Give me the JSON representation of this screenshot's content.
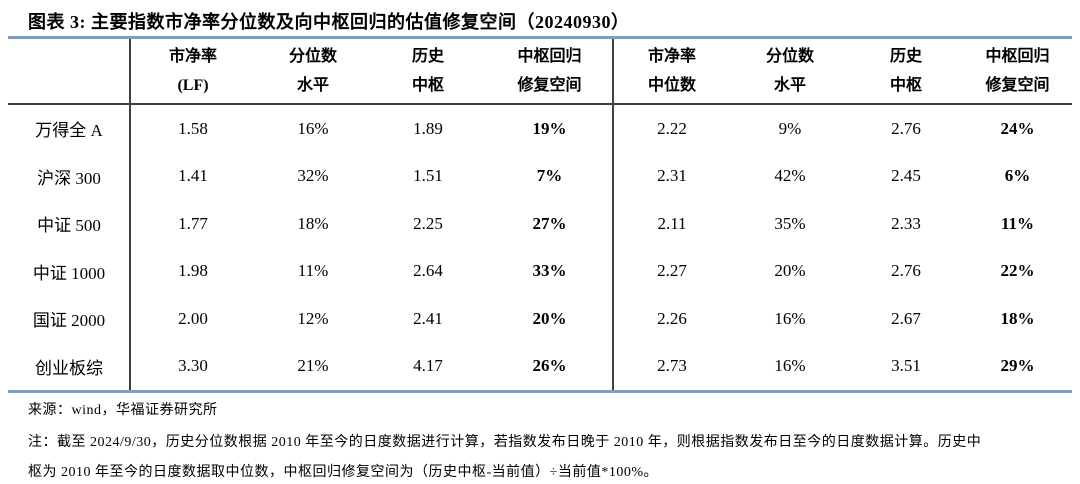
{
  "chart_data": {
    "type": "table",
    "title": "图表 3:  主要指数市净率分位数及向中枢回归的估值修复空间（20240930）",
    "columns": [
      "市净率(LF)",
      "分位数水平",
      "历史中枢",
      "中枢回归修复空间",
      "市净率中位数",
      "分位数水平",
      "历史中枢",
      "中枢回归修复空间"
    ],
    "rows": [
      {
        "index": "万得全 A",
        "values": [
          "1.58",
          "16%",
          "1.89",
          "19%",
          "2.22",
          "9%",
          "2.76",
          "24%"
        ]
      },
      {
        "index": "沪深 300",
        "values": [
          "1.41",
          "32%",
          "1.51",
          "7%",
          "2.31",
          "42%",
          "2.45",
          "6%"
        ]
      },
      {
        "index": "中证 500",
        "values": [
          "1.77",
          "18%",
          "2.25",
          "27%",
          "2.11",
          "35%",
          "2.33",
          "11%"
        ]
      },
      {
        "index": "中证 1000",
        "values": [
          "1.98",
          "11%",
          "2.64",
          "33%",
          "2.27",
          "20%",
          "2.76",
          "22%"
        ]
      },
      {
        "index": "国证 2000",
        "values": [
          "2.00",
          "12%",
          "2.41",
          "20%",
          "2.26",
          "16%",
          "2.67",
          "18%"
        ]
      },
      {
        "index": "创业板综",
        "values": [
          "3.30",
          "21%",
          "4.17",
          "26%",
          "2.73",
          "16%",
          "3.51",
          "29%"
        ]
      }
    ]
  },
  "headers": [
    {
      "line1": "市净率",
      "line2": "(LF)"
    },
    {
      "line1": "分位数",
      "line2": "水平"
    },
    {
      "line1": "历史",
      "line2": "中枢"
    },
    {
      "line1": "中枢回归",
      "line2": "修复空间"
    },
    {
      "line1": "市净率",
      "line2": "中位数"
    },
    {
      "line1": "分位数",
      "line2": "水平"
    },
    {
      "line1": "历史",
      "line2": "中枢"
    },
    {
      "line1": "中枢回归",
      "line2": "修复空间"
    }
  ],
  "footer": {
    "source": "来源：wind，华福证券研究所",
    "note_line1": "注：截至 2024/9/30，历史分位数根据 2010 年至今的日度数据进行计算，若指数发布日晚于 2010 年，则根据指数发布日至今的日度数据计算。历史中",
    "note_line2": "枢为 2010 年至今的日度数据取中位数，中枢回归修复空间为（历史中枢-当前值）÷当前值*100%。"
  },
  "colors": {
    "accent_blue": "#7d9bc8",
    "divider_dark": "#3f3f3f",
    "text": "#000000",
    "background": "#ffffff"
  }
}
